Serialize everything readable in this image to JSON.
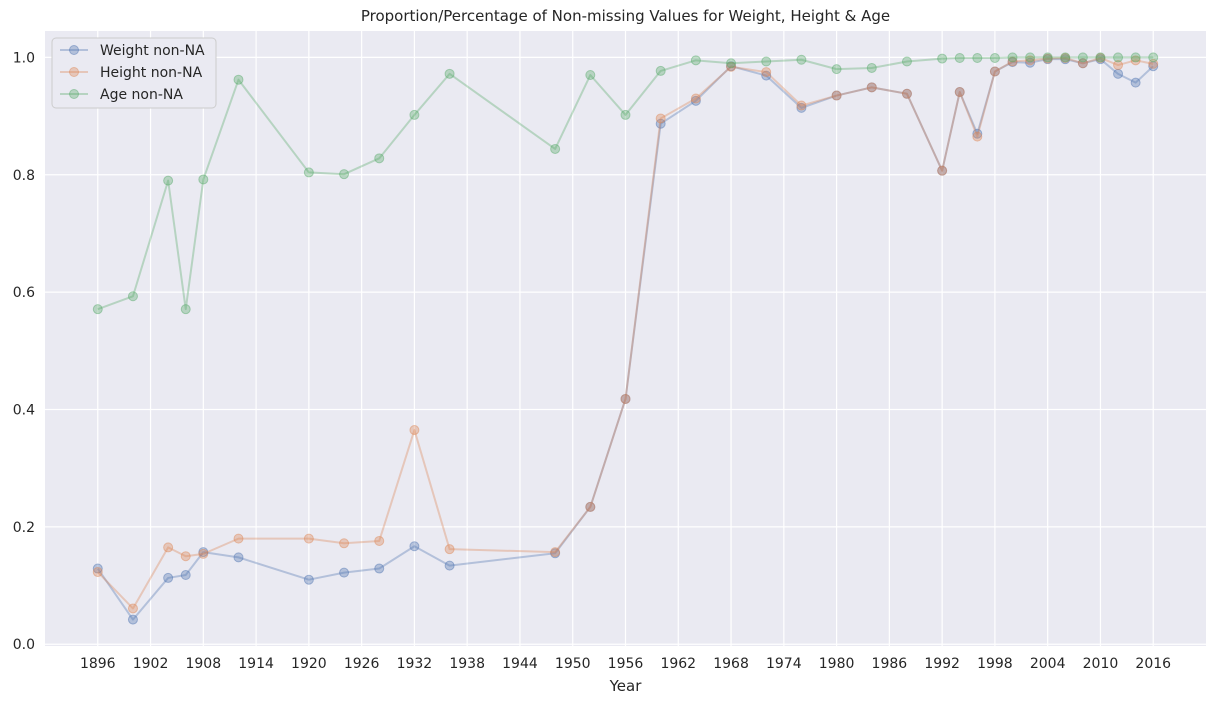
{
  "chart_data": {
    "type": "line",
    "title": "Proportion/Percentage of Non-missing Values for Weight, Height & Age",
    "xlabel": "Year",
    "ylabel": "",
    "xlim": [
      1890,
      2022
    ],
    "ylim": [
      -0.003,
      1.045
    ],
    "xticks": [
      1896,
      1902,
      1908,
      1914,
      1920,
      1926,
      1932,
      1938,
      1944,
      1950,
      1956,
      1962,
      1968,
      1974,
      1980,
      1986,
      1992,
      1998,
      2004,
      2010,
      2016
    ],
    "xtick_labels": [
      "1896",
      "1902",
      "1908",
      "1914",
      "1920",
      "1926",
      "1932",
      "1938",
      "1944",
      "1950",
      "1956",
      "1962",
      "1968",
      "1974",
      "1980",
      "1986",
      "1992",
      "1998",
      "2004",
      "2010",
      "2016"
    ],
    "yticks": [
      0.0,
      0.2,
      0.4,
      0.6,
      0.8,
      1.0
    ],
    "ytick_labels": [
      "0.0",
      "0.2",
      "0.4",
      "0.6",
      "0.8",
      "1.0"
    ],
    "grid": true,
    "legend_position": "top-left",
    "background": "#eaeaf2",
    "series": [
      {
        "name": "Weight non-NA",
        "color": "#4c72b0",
        "x": [
          1896,
          1900,
          1904,
          1906,
          1908,
          1912,
          1920,
          1924,
          1928,
          1932,
          1936,
          1948,
          1952,
          1956,
          1960,
          1964,
          1968,
          1972,
          1976,
          1980,
          1984,
          1988,
          1992,
          1994,
          1996,
          1998,
          2000,
          2002,
          2004,
          2006,
          2008,
          2010,
          2012,
          2014,
          2016
        ],
        "y": [
          0.129,
          0.042,
          0.113,
          0.118,
          0.157,
          0.148,
          0.11,
          0.122,
          0.129,
          0.167,
          0.134,
          0.155,
          0.234,
          0.418,
          0.887,
          0.926,
          0.985,
          0.969,
          0.914,
          0.935,
          0.949,
          0.938,
          0.807,
          0.941,
          0.87,
          0.976,
          0.992,
          0.991,
          0.997,
          0.997,
          0.99,
          0.997,
          0.972,
          0.957,
          0.985
        ]
      },
      {
        "name": "Height non-NA",
        "color": "#dd8452",
        "x": [
          1896,
          1900,
          1904,
          1906,
          1908,
          1912,
          1920,
          1924,
          1928,
          1932,
          1936,
          1948,
          1952,
          1956,
          1960,
          1964,
          1968,
          1972,
          1976,
          1980,
          1984,
          1988,
          1992,
          1994,
          1996,
          1998,
          2000,
          2002,
          2004,
          2006,
          2008,
          2010,
          2012,
          2014,
          2016
        ],
        "y": [
          0.123,
          0.061,
          0.165,
          0.15,
          0.154,
          0.18,
          0.18,
          0.172,
          0.176,
          0.365,
          0.162,
          0.157,
          0.234,
          0.418,
          0.896,
          0.93,
          0.984,
          0.975,
          0.918,
          0.935,
          0.949,
          0.938,
          0.807,
          0.941,
          0.865,
          0.976,
          0.993,
          0.995,
          0.998,
          0.999,
          0.99,
          0.999,
          0.987,
          0.995,
          0.989
        ]
      },
      {
        "name": "Age non-NA",
        "color": "#55a868",
        "x": [
          1896,
          1900,
          1904,
          1906,
          1908,
          1912,
          1920,
          1924,
          1928,
          1932,
          1936,
          1948,
          1952,
          1956,
          1960,
          1964,
          1968,
          1972,
          1976,
          1980,
          1984,
          1988,
          1992,
          1994,
          1996,
          1998,
          2000,
          2002,
          2004,
          2006,
          2008,
          2010,
          2012,
          2014,
          2016
        ],
        "y": [
          0.571,
          0.593,
          0.79,
          0.571,
          0.792,
          0.962,
          0.804,
          0.801,
          0.828,
          0.902,
          0.972,
          0.844,
          0.97,
          0.902,
          0.977,
          0.995,
          0.99,
          0.993,
          0.996,
          0.98,
          0.982,
          0.993,
          0.998,
          0.999,
          0.999,
          0.999,
          1.0,
          1.0,
          1.0,
          1.0,
          1.0,
          1.0,
          1.0,
          1.0,
          1.0
        ]
      }
    ]
  }
}
